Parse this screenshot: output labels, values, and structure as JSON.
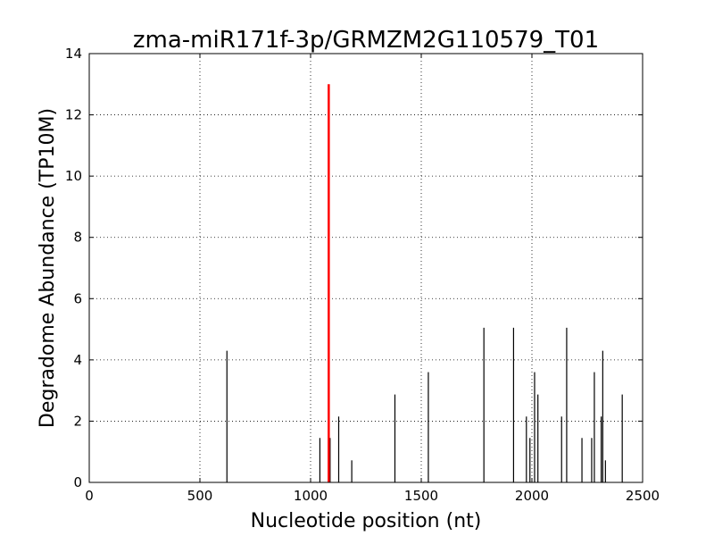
{
  "chart_data": {
    "type": "bar",
    "title": "zma-miR171f-3p/GRMZM2G110579_T01",
    "xlabel": "Nucleotide position (nt)",
    "ylabel": "Degradome Abundance (TP10M)",
    "xlim": [
      0,
      2500
    ],
    "ylim": [
      0,
      14
    ],
    "x_ticks": [
      0,
      500,
      1000,
      1500,
      2000,
      2500
    ],
    "y_ticks": [
      0,
      2,
      4,
      6,
      8,
      10,
      12,
      14
    ],
    "grid": true,
    "series": [
      {
        "color": "#000000",
        "points": [
          {
            "x": 622,
            "y": 4.3
          },
          {
            "x": 1042,
            "y": 1.45
          },
          {
            "x": 1088,
            "y": 1.45
          },
          {
            "x": 1127,
            "y": 2.15
          },
          {
            "x": 1186,
            "y": 0.72
          },
          {
            "x": 1381,
            "y": 2.87
          },
          {
            "x": 1532,
            "y": 3.6
          },
          {
            "x": 1783,
            "y": 5.05
          },
          {
            "x": 1917,
            "y": 5.05
          },
          {
            "x": 1975,
            "y": 2.15
          },
          {
            "x": 1991,
            "y": 1.45
          },
          {
            "x": 2012,
            "y": 3.6
          },
          {
            "x": 2027,
            "y": 2.87
          },
          {
            "x": 2134,
            "y": 2.15
          },
          {
            "x": 2157,
            "y": 5.05
          },
          {
            "x": 2226,
            "y": 1.45
          },
          {
            "x": 2270,
            "y": 1.45
          },
          {
            "x": 2282,
            "y": 3.6
          },
          {
            "x": 2313,
            "y": 2.15
          },
          {
            "x": 2320,
            "y": 4.3
          },
          {
            "x": 2332,
            "y": 0.72
          },
          {
            "x": 2408,
            "y": 2.87
          }
        ]
      },
      {
        "color": "#ff0000",
        "points": [
          {
            "x": 1082,
            "y": 13.0
          }
        ]
      }
    ]
  }
}
